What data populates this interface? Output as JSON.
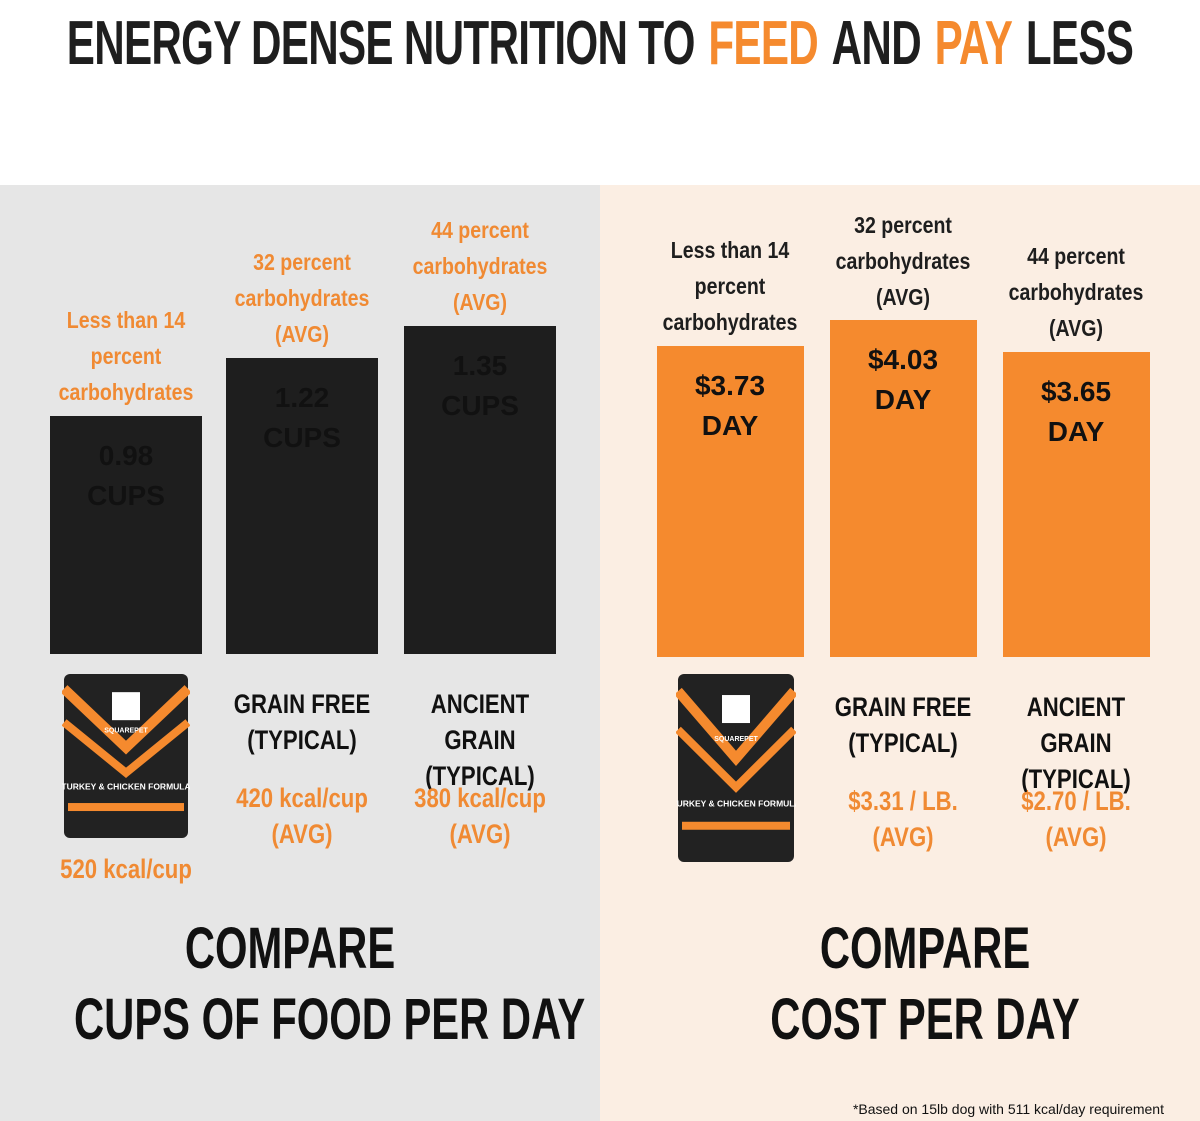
{
  "title_segments": [
    "ENERGY DENSE NUTRITION TO",
    "FEED",
    "AND",
    "PAY",
    "LESS"
  ],
  "chart_data": [
    {
      "type": "bar",
      "color": "#1e1e1e",
      "annotation_color": "#f08a33",
      "values": [
        0.98,
        1.22,
        1.35
      ],
      "value_labels": [
        "0.98 CUPS",
        "1.22 CUPS",
        "1.35 CUPS"
      ],
      "bar_annotations": [
        "Less than 14 percent carbohydrates",
        "32 percent carbohydrates (AVG)",
        "44 percent carbohydrates (AVG)"
      ],
      "categories": [
        null,
        "GRAIN FREE (TYPICAL)",
        "ANCIENT GRAIN (TYPICAL)"
      ],
      "notes": [
        "520 kcal/cup",
        "420 kcal/cup (AVG)",
        "380 kcal/cup (AVG)"
      ],
      "title": "COMPARE",
      "subtitle": "CUPS OF FOOD PER DAY"
    },
    {
      "type": "bar",
      "color": "#f58a2e",
      "annotation_color": "#1e1e1e",
      "values": [
        3.73,
        4.03,
        3.65
      ],
      "value_labels": [
        "$3.73 DAY",
        "$4.03 DAY",
        "$3.65 DAY"
      ],
      "bar_annotations": [
        "Less than 14 percent carbohydrates",
        "32 percent carbohydrates (AVG)",
        "44 percent carbohydrates (AVG)"
      ],
      "categories": [
        null,
        "GRAIN FREE (TYPICAL)",
        "ANCIENT GRAIN (TYPICAL)"
      ],
      "notes": [
        null,
        "$3.31 / LB. (AVG)",
        "$2.70 / LB. (AVG)"
      ],
      "title": "COMPARE",
      "subtitle": "COST PER DAY"
    }
  ],
  "product": {
    "brand": "SQUAREPET",
    "name": "TURKEY & CHICKEN FORMULA"
  },
  "footnote": "*Based on 15lb dog with 511 kcal/day requirement"
}
